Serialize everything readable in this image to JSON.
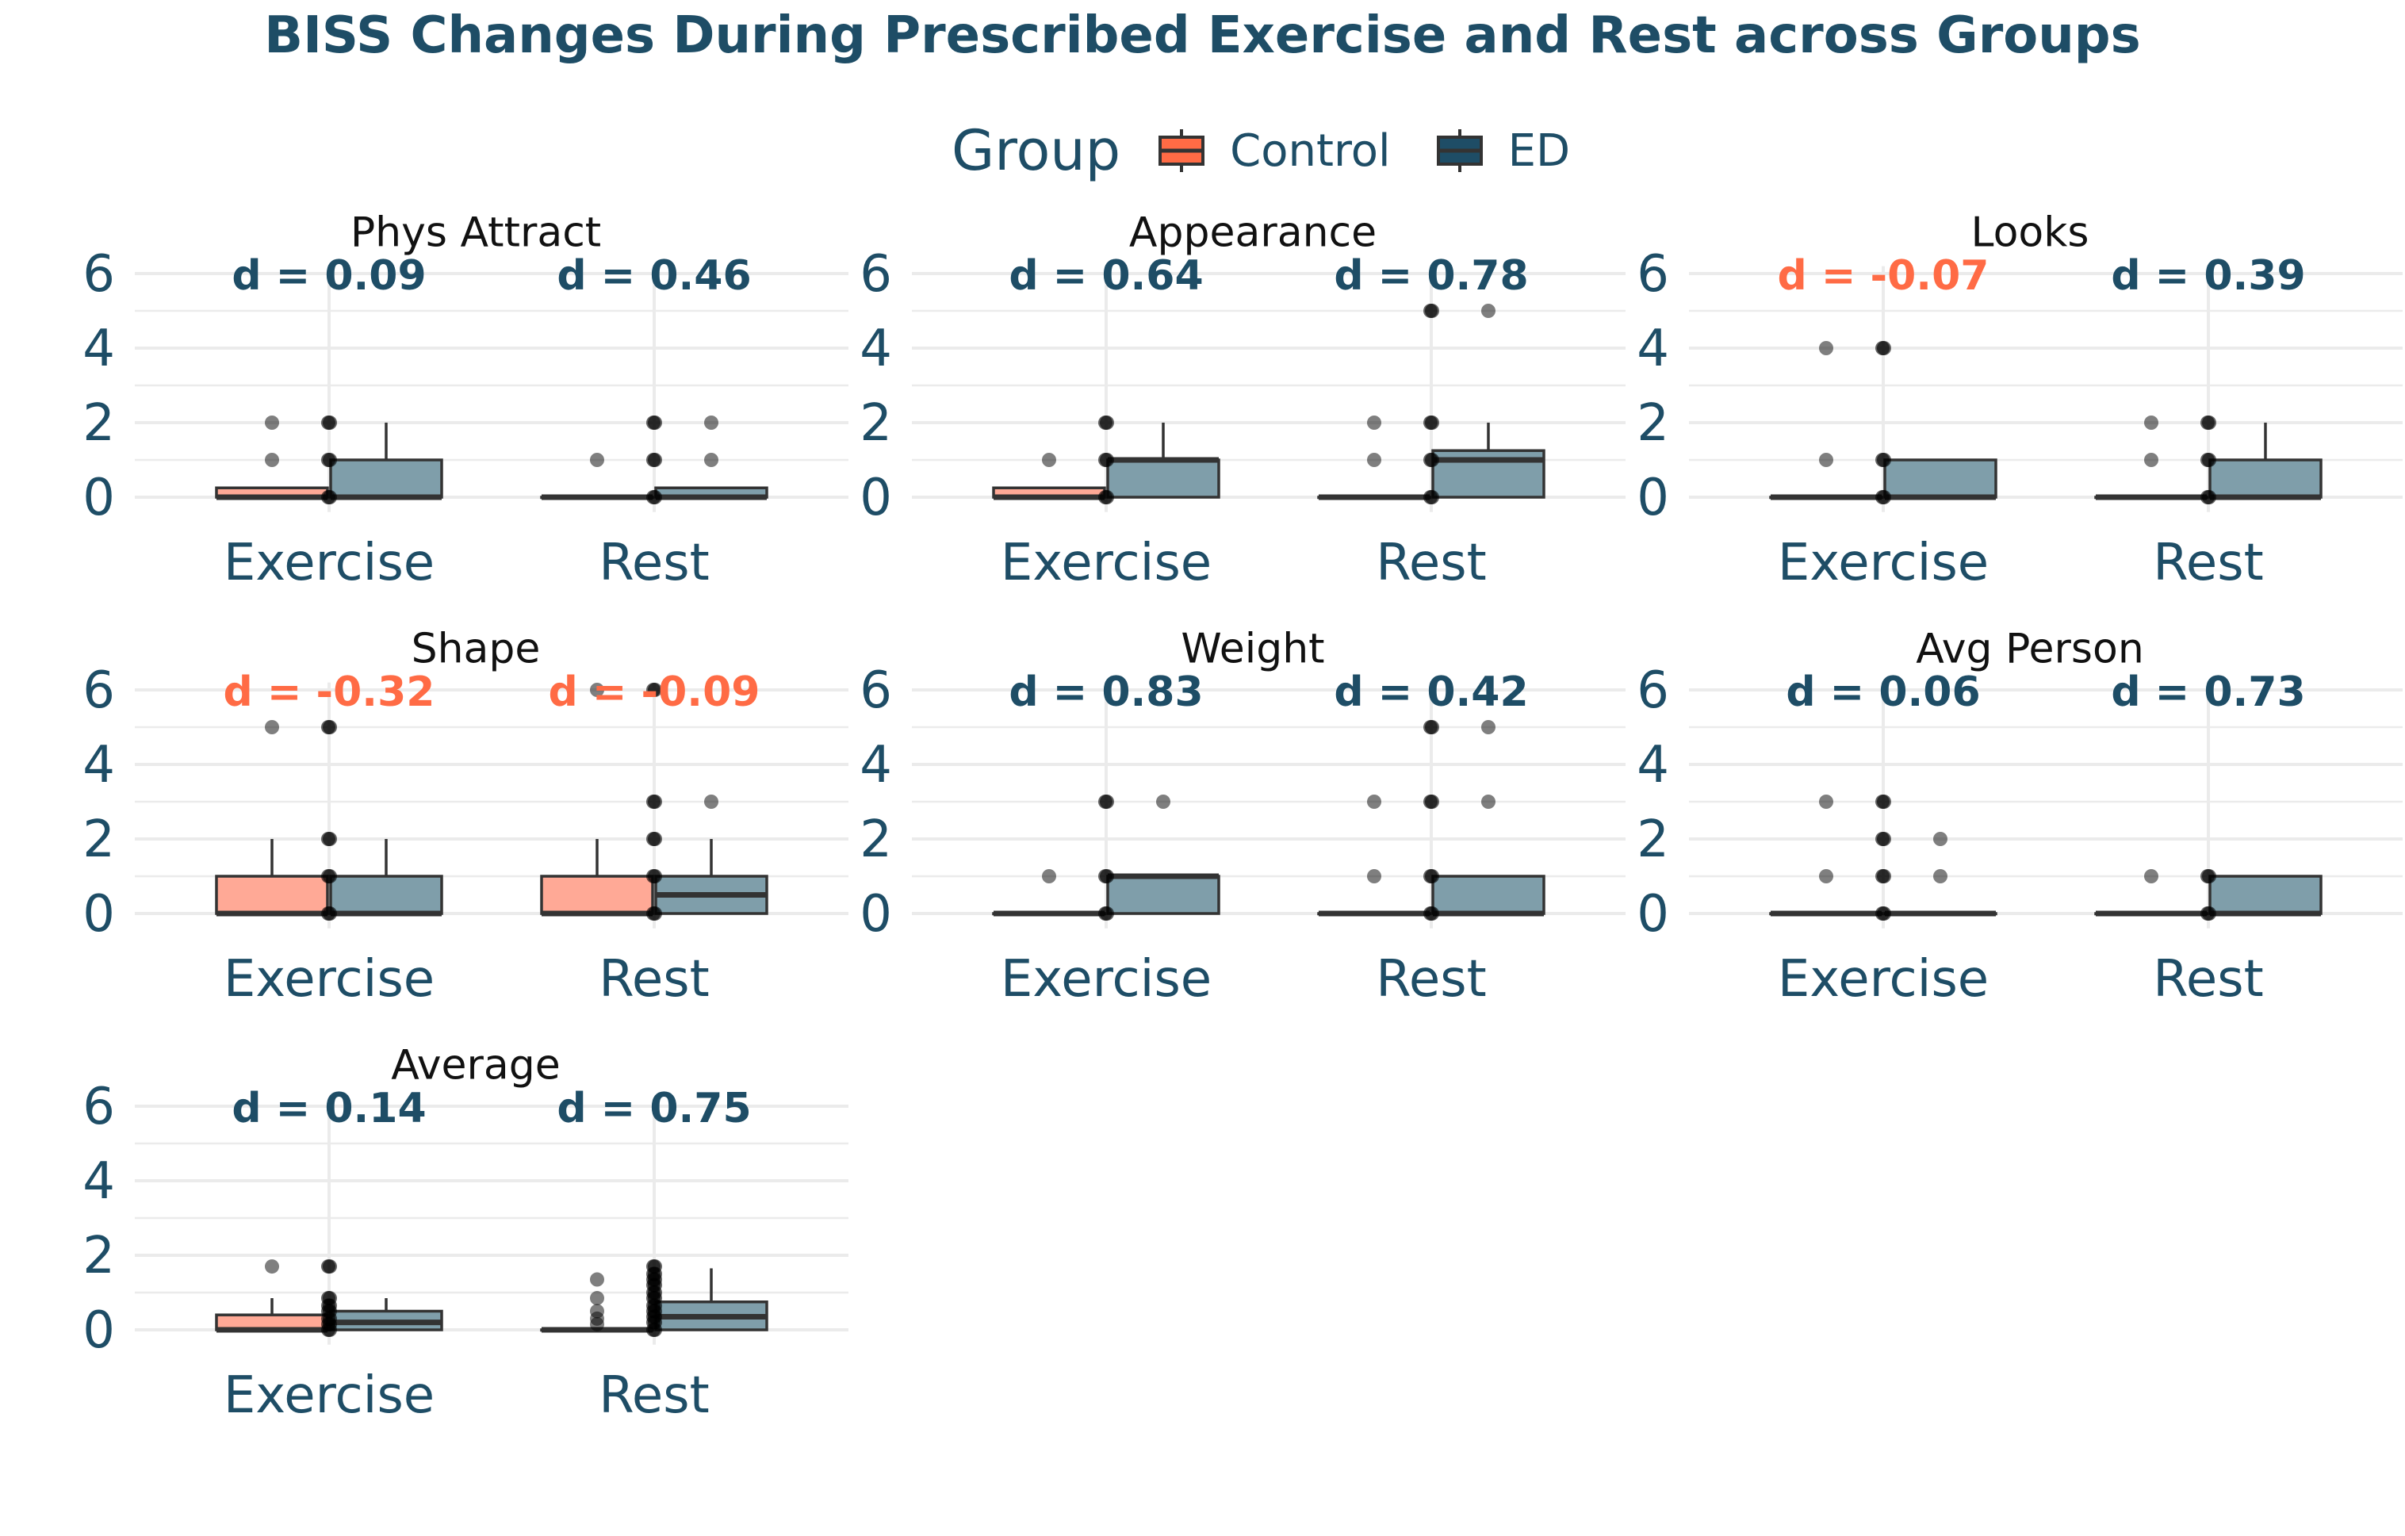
{
  "title": "BISS Changes During Prescribed Exercise and Rest across Groups",
  "legend": {
    "title": "Group",
    "items": [
      {
        "label": "Control",
        "color": "#ff6b45"
      },
      {
        "label": "ED",
        "color": "#1e4d66"
      }
    ]
  },
  "colors": {
    "control_fill": "#ffa996",
    "ed_fill": "#7f9eaa",
    "positive_d": "#1e4d66",
    "negative_d": "#ff6b45"
  },
  "chart_data": {
    "type": "box",
    "categories": [
      "Exercise",
      "Rest"
    ],
    "y_ticks": [
      0,
      2,
      4,
      6
    ],
    "ylim": [
      -0.4,
      6.2
    ],
    "grid": true,
    "legend_position": "top",
    "panels": [
      {
        "name": "Phys Attract",
        "d": [
          "d = 0.09",
          "d = 0.46"
        ],
        "boxes": [
          {
            "cat": "Exercise",
            "group": "Control",
            "q1": 0,
            "median": 0,
            "q3": 0.25,
            "wlo": 0,
            "whi": 0.25,
            "outliers": [
              1,
              2
            ]
          },
          {
            "cat": "Exercise",
            "group": "ED",
            "q1": 0,
            "median": 0,
            "q3": 1,
            "wlo": 0,
            "whi": 2,
            "outliers": []
          },
          {
            "cat": "Rest",
            "group": "Control",
            "q1": 0,
            "median": 0,
            "q3": 0,
            "wlo": 0,
            "whi": 0,
            "outliers": [
              1
            ]
          },
          {
            "cat": "Rest",
            "group": "ED",
            "q1": 0,
            "median": 0,
            "q3": 0.25,
            "wlo": 0,
            "whi": 0.25,
            "outliers": [
              1,
              2
            ]
          }
        ],
        "points": [
          {
            "cat": "Exercise",
            "group": "Control",
            "values": [
              0,
              1,
              2
            ]
          },
          {
            "cat": "Exercise",
            "group": "ED",
            "values": [
              0,
              1,
              2
            ]
          },
          {
            "cat": "Rest",
            "group": "Control",
            "values": [
              0,
              1,
              2
            ]
          },
          {
            "cat": "Rest",
            "group": "ED",
            "values": [
              0,
              1,
              2
            ]
          }
        ]
      },
      {
        "name": "Appearance",
        "d": [
          "d = 0.64",
          "d = 0.78"
        ],
        "boxes": [
          {
            "cat": "Exercise",
            "group": "Control",
            "q1": 0,
            "median": 0,
            "q3": 0.25,
            "wlo": 0,
            "whi": 0.25,
            "outliers": [
              1
            ]
          },
          {
            "cat": "Exercise",
            "group": "ED",
            "q1": 0,
            "median": 1,
            "q3": 1,
            "wlo": 0,
            "whi": 2,
            "outliers": []
          },
          {
            "cat": "Rest",
            "group": "Control",
            "q1": 0,
            "median": 0,
            "q3": 0,
            "wlo": 0,
            "whi": 0,
            "outliers": [
              1,
              2
            ]
          },
          {
            "cat": "Rest",
            "group": "ED",
            "q1": 0,
            "median": 1,
            "q3": 1.25,
            "wlo": 0,
            "whi": 2,
            "outliers": [
              5
            ]
          }
        ],
        "points": [
          {
            "cat": "Exercise",
            "group": "Control",
            "values": [
              0,
              1,
              2
            ]
          },
          {
            "cat": "Exercise",
            "group": "ED",
            "values": [
              0,
              1,
              2
            ]
          },
          {
            "cat": "Rest",
            "group": "Control",
            "values": [
              0,
              1,
              2,
              5
            ]
          },
          {
            "cat": "Rest",
            "group": "ED",
            "values": [
              0,
              1,
              2,
              5
            ]
          }
        ]
      },
      {
        "name": "Looks",
        "d": [
          "d = -0.07",
          "d = 0.39"
        ],
        "boxes": [
          {
            "cat": "Exercise",
            "group": "Control",
            "q1": 0,
            "median": 0,
            "q3": 0,
            "wlo": 0,
            "whi": 0,
            "outliers": [
              1,
              4
            ]
          },
          {
            "cat": "Exercise",
            "group": "ED",
            "q1": 0,
            "median": 0,
            "q3": 1,
            "wlo": 0,
            "whi": 1,
            "outliers": []
          },
          {
            "cat": "Rest",
            "group": "Control",
            "q1": 0,
            "median": 0,
            "q3": 0,
            "wlo": 0,
            "whi": 0,
            "outliers": [
              1,
              2
            ]
          },
          {
            "cat": "Rest",
            "group": "ED",
            "q1": 0,
            "median": 0,
            "q3": 1,
            "wlo": 0,
            "whi": 2,
            "outliers": []
          }
        ],
        "points": [
          {
            "cat": "Exercise",
            "group": "Control",
            "values": [
              0,
              1,
              4
            ]
          },
          {
            "cat": "Exercise",
            "group": "ED",
            "values": [
              0,
              1,
              4
            ]
          },
          {
            "cat": "Rest",
            "group": "Control",
            "values": [
              0,
              1,
              2
            ]
          },
          {
            "cat": "Rest",
            "group": "ED",
            "values": [
              0,
              1,
              2
            ]
          }
        ]
      },
      {
        "name": "Shape",
        "d": [
          "d = -0.32",
          "d = -0.09"
        ],
        "boxes": [
          {
            "cat": "Exercise",
            "group": "Control",
            "q1": 0,
            "median": 0,
            "q3": 1,
            "wlo": 0,
            "whi": 2,
            "outliers": [
              5
            ]
          },
          {
            "cat": "Exercise",
            "group": "ED",
            "q1": 0,
            "median": 0,
            "q3": 1,
            "wlo": 0,
            "whi": 2,
            "outliers": []
          },
          {
            "cat": "Rest",
            "group": "Control",
            "q1": 0,
            "median": 0,
            "q3": 1,
            "wlo": 0,
            "whi": 2,
            "outliers": [
              6
            ]
          },
          {
            "cat": "Rest",
            "group": "ED",
            "q1": 0,
            "median": 0.5,
            "q3": 1,
            "wlo": 0,
            "whi": 2,
            "outliers": [
              3
            ]
          }
        ],
        "points": [
          {
            "cat": "Exercise",
            "group": "Control",
            "values": [
              0,
              1,
              2,
              5
            ]
          },
          {
            "cat": "Exercise",
            "group": "ED",
            "values": [
              0,
              1,
              2,
              5
            ]
          },
          {
            "cat": "Rest",
            "group": "Control",
            "values": [
              0,
              1,
              2,
              3,
              6
            ]
          },
          {
            "cat": "Rest",
            "group": "ED",
            "values": [
              0,
              1,
              2,
              3,
              6
            ]
          }
        ]
      },
      {
        "name": "Weight",
        "d": [
          "d = 0.83",
          "d = 0.42"
        ],
        "boxes": [
          {
            "cat": "Exercise",
            "group": "Control",
            "q1": 0,
            "median": 0,
            "q3": 0,
            "wlo": 0,
            "whi": 0,
            "outliers": [
              1
            ]
          },
          {
            "cat": "Exercise",
            "group": "ED",
            "q1": 0,
            "median": 1,
            "q3": 1,
            "wlo": 0,
            "whi": 1,
            "outliers": [
              3
            ]
          },
          {
            "cat": "Rest",
            "group": "Control",
            "q1": 0,
            "median": 0,
            "q3": 0,
            "wlo": 0,
            "whi": 0,
            "outliers": [
              1,
              3
            ]
          },
          {
            "cat": "Rest",
            "group": "ED",
            "q1": 0,
            "median": 0,
            "q3": 1,
            "wlo": 0,
            "whi": 1,
            "outliers": [
              3,
              5
            ]
          }
        ],
        "points": [
          {
            "cat": "Exercise",
            "group": "Control",
            "values": [
              0,
              1,
              3
            ]
          },
          {
            "cat": "Exercise",
            "group": "ED",
            "values": [
              0,
              1,
              3
            ]
          },
          {
            "cat": "Rest",
            "group": "Control",
            "values": [
              0,
              1,
              3,
              5
            ]
          },
          {
            "cat": "Rest",
            "group": "ED",
            "values": [
              0,
              1,
              3,
              5
            ]
          }
        ]
      },
      {
        "name": "Avg Person",
        "d": [
          "d = 0.06",
          "d = 0.73"
        ],
        "boxes": [
          {
            "cat": "Exercise",
            "group": "Control",
            "q1": 0,
            "median": 0,
            "q3": 0,
            "wlo": 0,
            "whi": 0,
            "outliers": [
              1,
              3
            ]
          },
          {
            "cat": "Exercise",
            "group": "ED",
            "q1": 0,
            "median": 0,
            "q3": 0,
            "wlo": 0,
            "whi": 0,
            "outliers": [
              1,
              2
            ]
          },
          {
            "cat": "Rest",
            "group": "Control",
            "q1": 0,
            "median": 0,
            "q3": 0,
            "wlo": 0,
            "whi": 0,
            "outliers": [
              1
            ]
          },
          {
            "cat": "Rest",
            "group": "ED",
            "q1": 0,
            "median": 0,
            "q3": 1,
            "wlo": 0,
            "whi": 1,
            "outliers": []
          }
        ],
        "points": [
          {
            "cat": "Exercise",
            "group": "Control",
            "values": [
              0,
              1,
              2,
              3
            ]
          },
          {
            "cat": "Exercise",
            "group": "ED",
            "values": [
              0,
              1,
              2,
              3
            ]
          },
          {
            "cat": "Rest",
            "group": "Control",
            "values": [
              0,
              1
            ]
          },
          {
            "cat": "Rest",
            "group": "ED",
            "values": [
              0,
              1
            ]
          }
        ]
      },
      {
        "name": "Average",
        "d": [
          "d = 0.14",
          "d = 0.75"
        ],
        "boxes": [
          {
            "cat": "Exercise",
            "group": "Control",
            "q1": 0,
            "median": 0,
            "q3": 0.4,
            "wlo": 0,
            "whi": 0.85,
            "outliers": [
              1.7
            ]
          },
          {
            "cat": "Exercise",
            "group": "ED",
            "q1": 0,
            "median": 0.2,
            "q3": 0.5,
            "wlo": 0,
            "whi": 0.85,
            "outliers": []
          },
          {
            "cat": "Rest",
            "group": "Control",
            "q1": 0,
            "median": 0,
            "q3": 0,
            "wlo": 0,
            "whi": 0,
            "outliers": [
              0.15,
              0.3,
              0.5,
              0.85,
              1.35
            ]
          },
          {
            "cat": "Rest",
            "group": "ED",
            "q1": 0,
            "median": 0.35,
            "q3": 0.75,
            "wlo": 0,
            "whi": 1.65,
            "outliers": []
          }
        ],
        "points": [
          {
            "cat": "Exercise",
            "group": "Control",
            "values": [
              0,
              0.15,
              0.3,
              0.5,
              0.65,
              0.85,
              1.7
            ]
          },
          {
            "cat": "Exercise",
            "group": "ED",
            "values": [
              0,
              0.15,
              0.3,
              0.5,
              0.65,
              0.85,
              1.7
            ]
          },
          {
            "cat": "Rest",
            "group": "Control",
            "values": [
              0,
              0.2,
              0.35,
              0.5,
              0.65,
              0.85,
              1.0,
              1.2,
              1.35,
              1.5,
              1.7
            ]
          },
          {
            "cat": "Rest",
            "group": "ED",
            "values": [
              0,
              0.2,
              0.35,
              0.5,
              0.65,
              0.85,
              1.0,
              1.2,
              1.35,
              1.5,
              1.7
            ]
          }
        ]
      }
    ]
  }
}
